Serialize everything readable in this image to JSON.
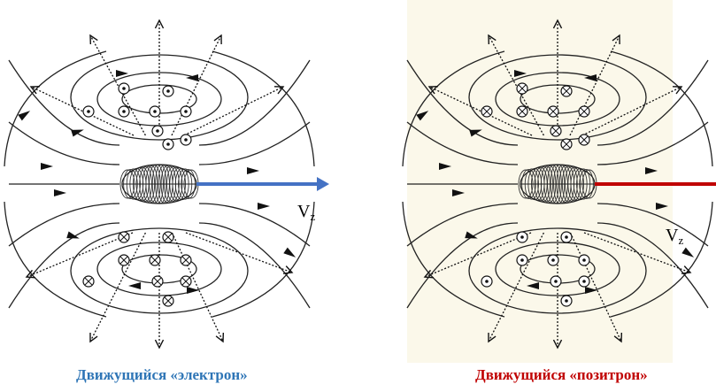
{
  "left": {
    "caption": "Движущийся «электрон»",
    "caption_color": "#2e75b6",
    "arrow_color": "#4472c4",
    "velocity_label": "V",
    "velocity_sub": "z",
    "upper_symbol": "dot",
    "lower_symbol": "cross",
    "background": "#ffffff"
  },
  "right": {
    "caption": "Движущийся «позитрон»",
    "caption_color": "#c00000",
    "arrow_color": "#c00000",
    "velocity_label": "V",
    "velocity_sub": "z",
    "upper_symbol": "cross",
    "lower_symbol": "dot",
    "background": "#fbf8ea"
  }
}
